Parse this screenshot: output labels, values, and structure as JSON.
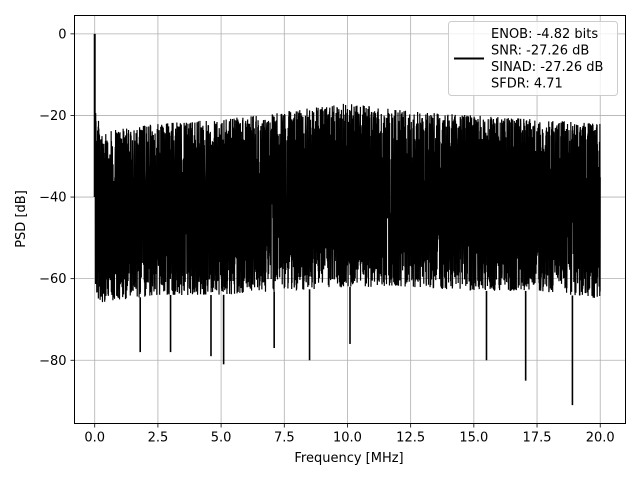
{
  "chart_data": {
    "type": "line",
    "title": "",
    "xlabel": "Frequency [MHz]",
    "ylabel": "PSD [dB]",
    "xlim": [
      -0.8,
      21.0
    ],
    "ylim": [
      -95.5,
      4.5
    ],
    "grid": true,
    "legend_position": "top-right",
    "xticks": [
      0.0,
      2.5,
      5.0,
      7.5,
      10.0,
      12.5,
      15.0,
      17.5,
      20.0
    ],
    "xtick_labels": [
      "0.0",
      "2.5",
      "5.0",
      "7.5",
      "10.0",
      "12.5",
      "15.0",
      "17.5",
      "20.0"
    ],
    "yticks": [
      0,
      -20,
      -40,
      -60,
      -80
    ],
    "ytick_labels": [
      "0",
      "−20",
      "−40",
      "−60",
      "−80"
    ],
    "series": [
      {
        "color": "#000000",
        "x_range": [
          0.0,
          20.0
        ],
        "peak": {
          "x": 0.0,
          "y": 0.0
        },
        "noise_upper_envelope": [
          {
            "x": 0.0,
            "y": -18
          },
          {
            "x": 0.3,
            "y": -24
          },
          {
            "x": 2.5,
            "y": -22
          },
          {
            "x": 5.0,
            "y": -21
          },
          {
            "x": 7.5,
            "y": -19
          },
          {
            "x": 10.0,
            "y": -17
          },
          {
            "x": 12.5,
            "y": -19
          },
          {
            "x": 15.0,
            "y": -20
          },
          {
            "x": 17.5,
            "y": -21
          },
          {
            "x": 20.0,
            "y": -22
          }
        ],
        "noise_lower_envelope": [
          {
            "x": 0.0,
            "y": -66
          },
          {
            "x": 2.5,
            "y": -64
          },
          {
            "x": 5.0,
            "y": -64
          },
          {
            "x": 7.5,
            "y": -63
          },
          {
            "x": 10.0,
            "y": -62
          },
          {
            "x": 12.5,
            "y": -62
          },
          {
            "x": 15.0,
            "y": -63
          },
          {
            "x": 17.5,
            "y": -63
          },
          {
            "x": 20.0,
            "y": -65
          }
        ],
        "deep_nulls": [
          {
            "x": 1.8,
            "y": -78
          },
          {
            "x": 3.0,
            "y": -78
          },
          {
            "x": 4.6,
            "y": -79
          },
          {
            "x": 5.1,
            "y": -81
          },
          {
            "x": 7.1,
            "y": -77
          },
          {
            "x": 8.5,
            "y": -80
          },
          {
            "x": 10.1,
            "y": -76
          },
          {
            "x": 15.5,
            "y": -80
          },
          {
            "x": 17.05,
            "y": -85
          },
          {
            "x": 18.9,
            "y": -91
          }
        ]
      }
    ],
    "legend": {
      "lines": [
        "ENOB: -4.82 bits",
        "SNR: -27.26 dB",
        "SINAD: -27.26 dB",
        "SFDR: 4.71"
      ]
    }
  }
}
